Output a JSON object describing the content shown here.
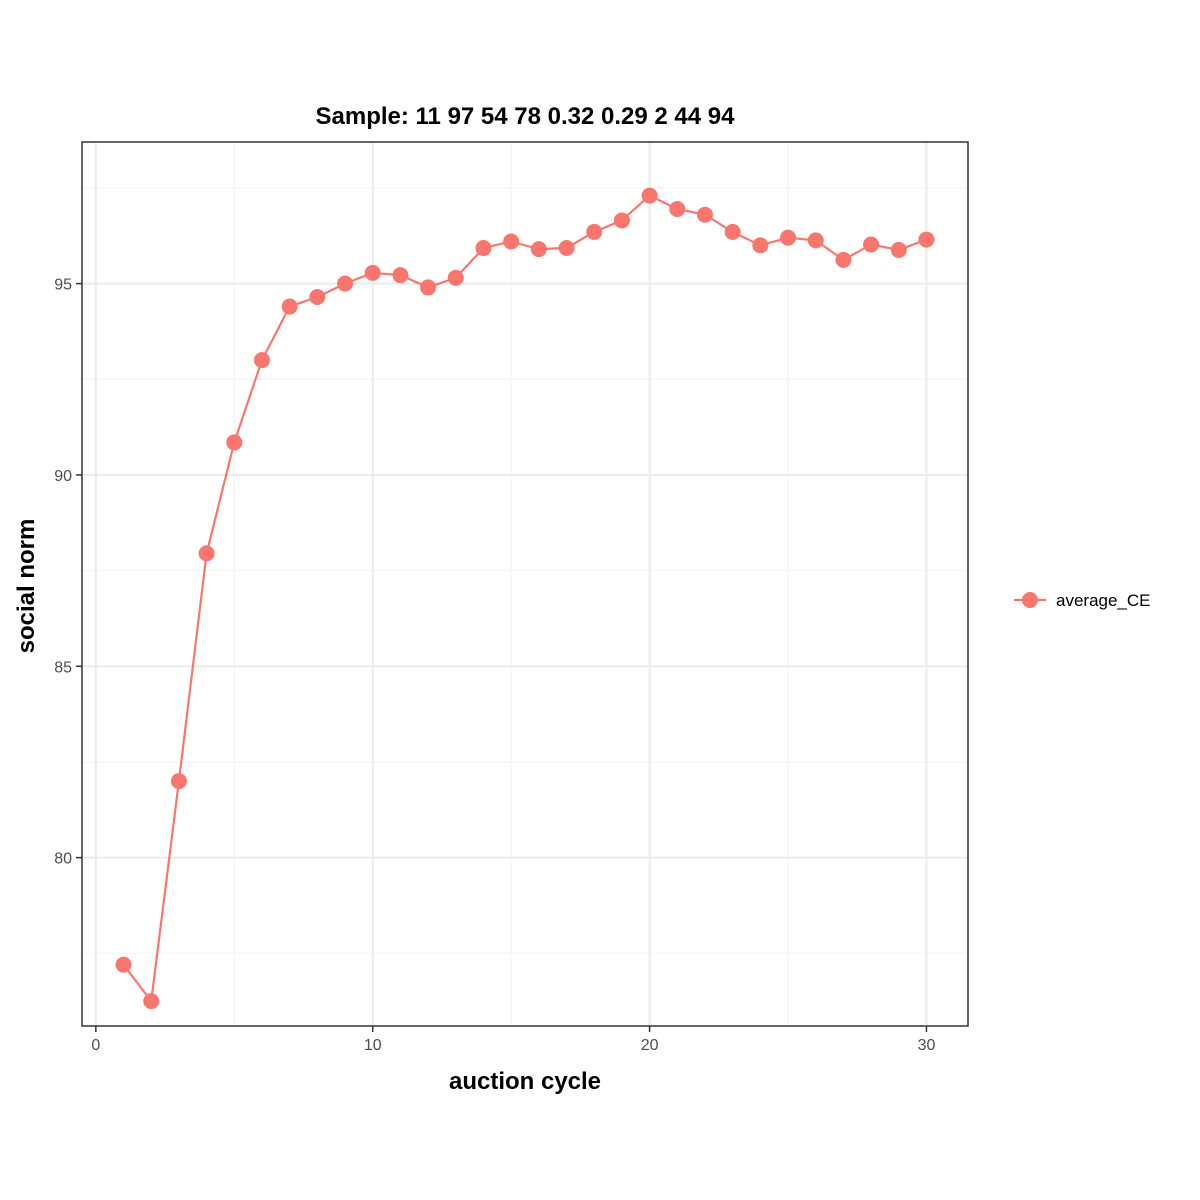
{
  "chart_data": {
    "type": "line",
    "title": "Sample: 11 97 54 78 0.32 0.29 2 44 94",
    "xlabel": "auction cycle",
    "ylabel": "social norm",
    "xlim": [
      -0.5,
      31.5
    ],
    "ylim": [
      75.6,
      98.7
    ],
    "x_ticks": [
      0,
      10,
      20,
      30
    ],
    "y_ticks": [
      80,
      85,
      90,
      95
    ],
    "grid": true,
    "legend_position": "right",
    "series": [
      {
        "name": "average_CE",
        "color": "#F8766D",
        "x": [
          1,
          2,
          3,
          4,
          5,
          6,
          7,
          8,
          9,
          10,
          11,
          12,
          13,
          14,
          15,
          16,
          17,
          18,
          19,
          20,
          21,
          22,
          23,
          24,
          25,
          26,
          27,
          28,
          29,
          30
        ],
        "y": [
          77.2,
          76.25,
          82,
          87.95,
          90.85,
          93,
          94.4,
          94.65,
          95,
          95.28,
          95.22,
          94.9,
          95.15,
          95.93,
          96.1,
          95.9,
          95.93,
          96.35,
          96.65,
          97.3,
          96.95,
          96.8,
          96.35,
          96.0,
          96.2,
          96.13,
          95.62,
          96.02,
          95.88,
          96.15
        ]
      }
    ]
  }
}
